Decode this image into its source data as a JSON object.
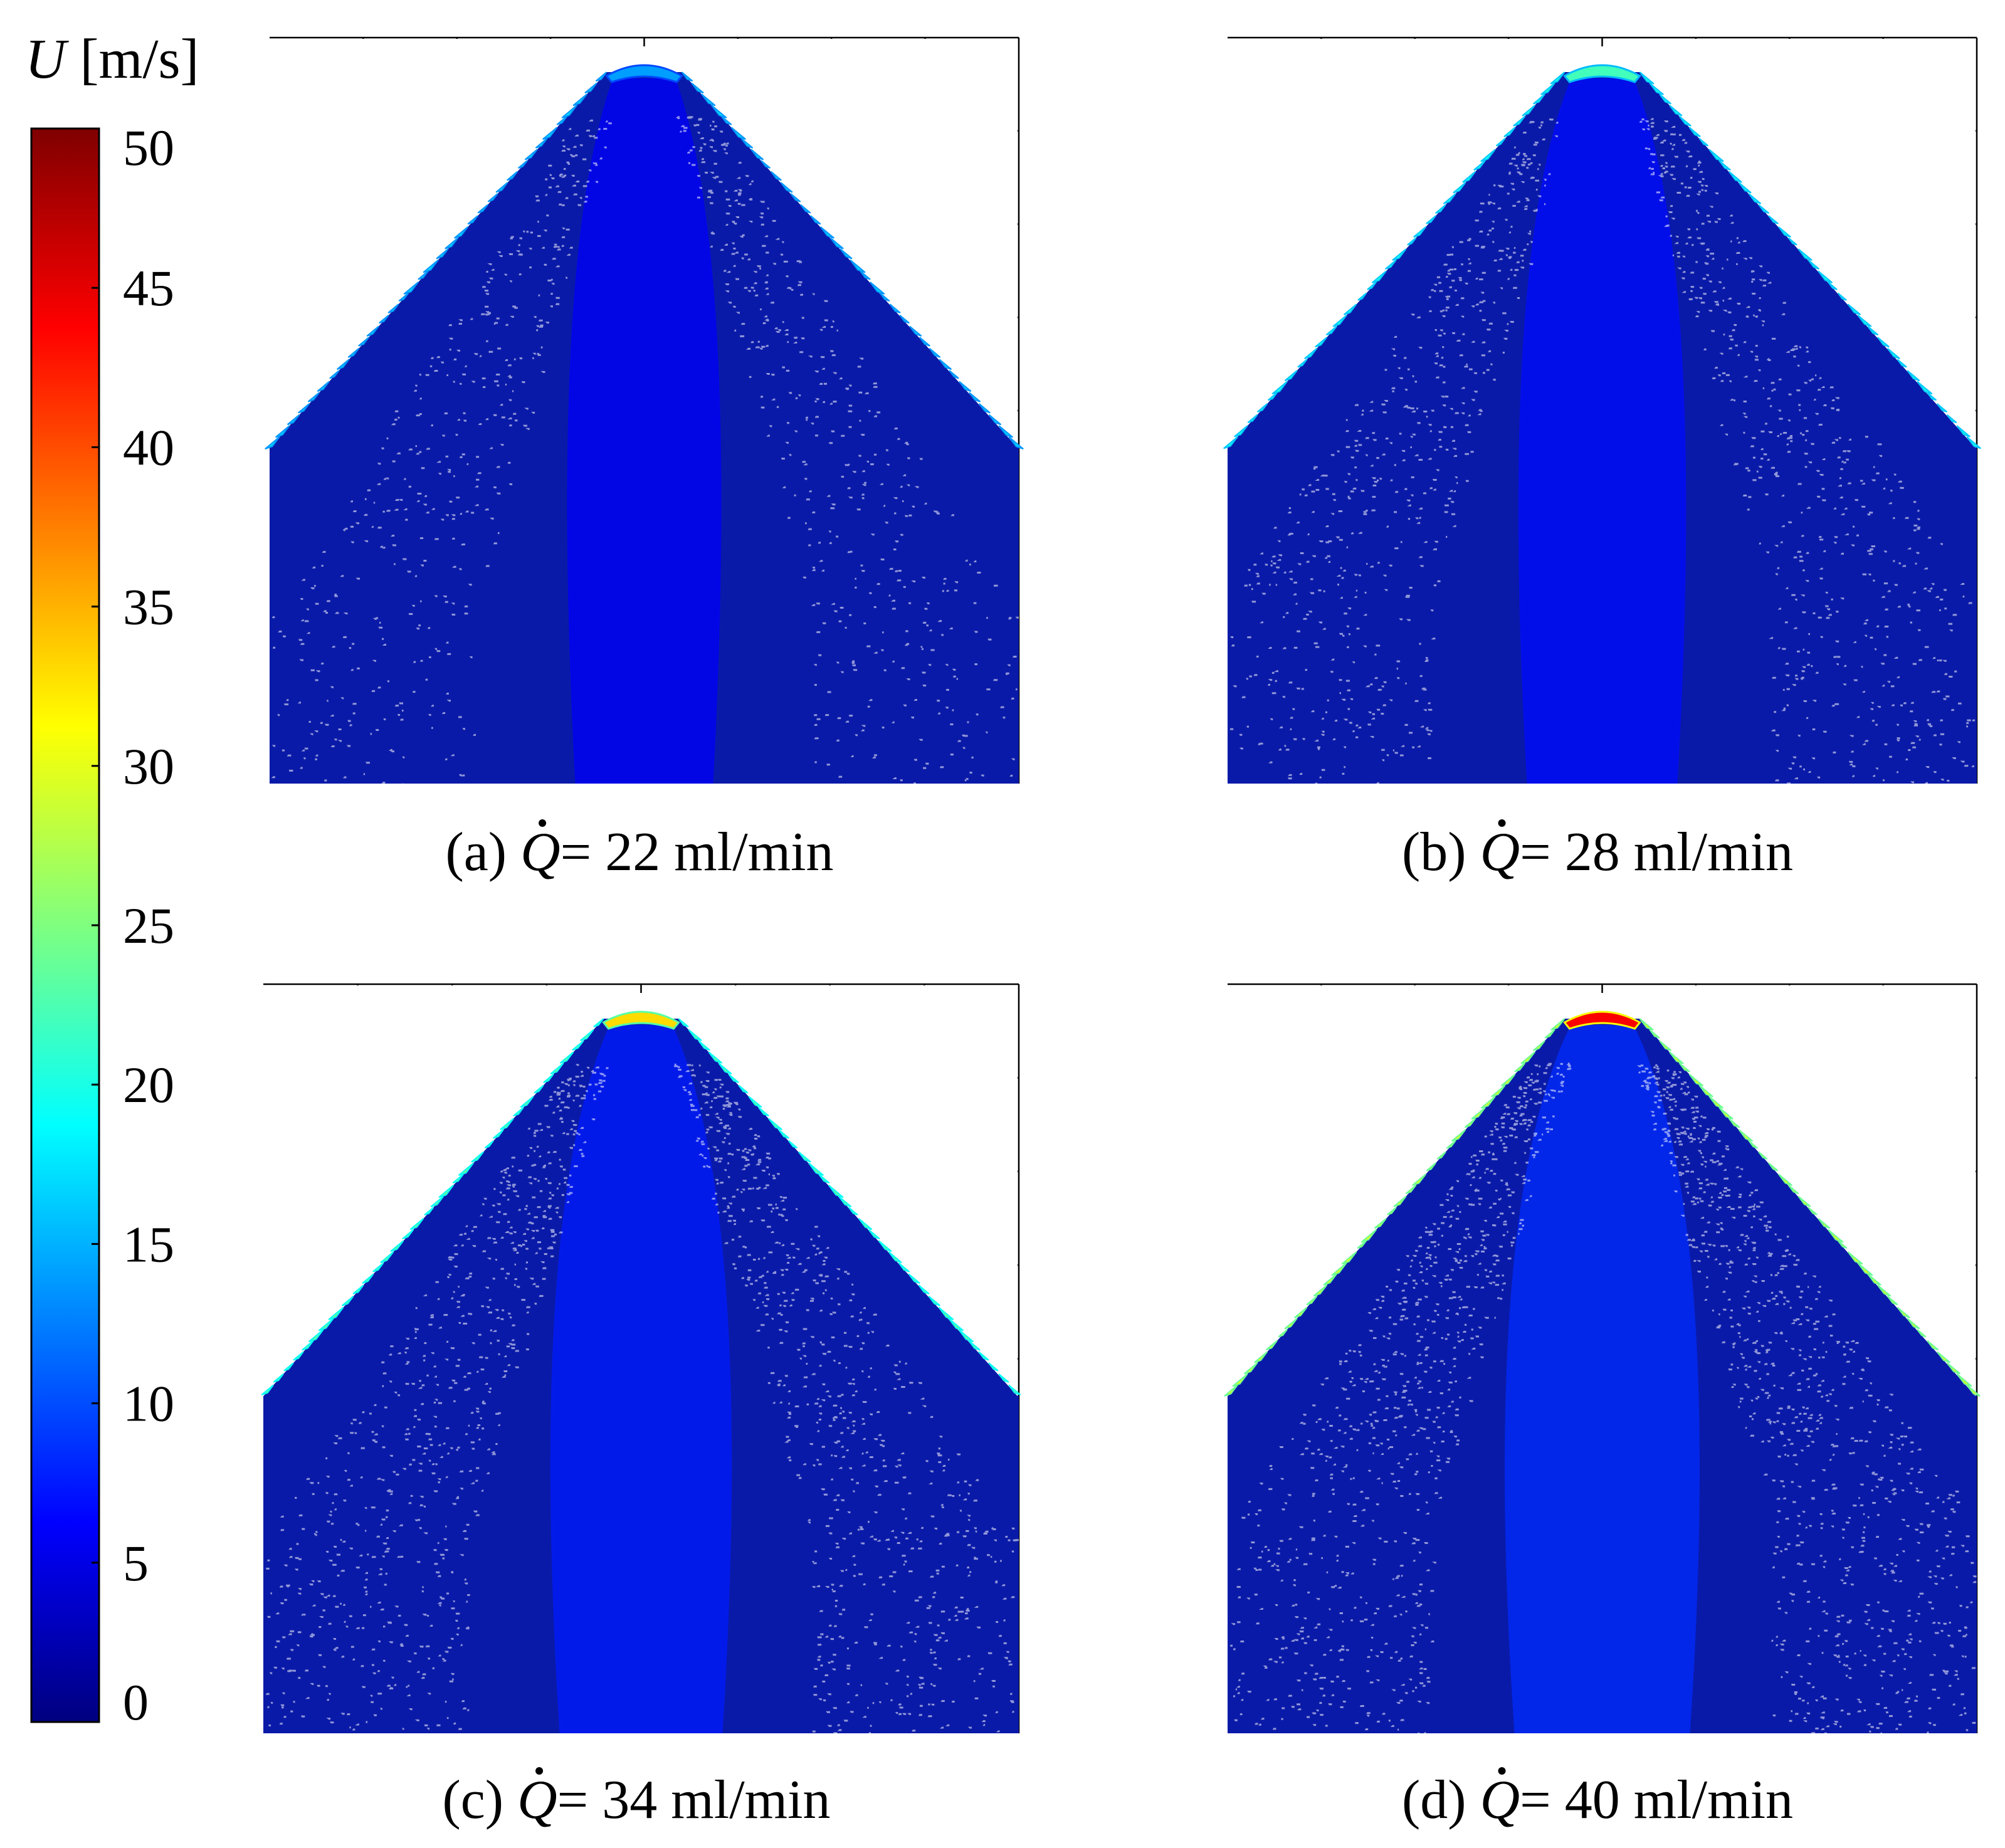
{
  "figure": {
    "colorbar": {
      "symbol": "U",
      "unit": " [m/s]",
      "min": 0,
      "max": 50,
      "ticks": [
        "0",
        "5",
        "10",
        "15",
        "20",
        "25",
        "30",
        "35",
        "40",
        "45",
        "50"
      ],
      "colormap": [
        "#00007f",
        "#0000ff",
        "#007fff",
        "#00ffff",
        "#7fff7f",
        "#ffff00",
        "#ff7f00",
        "#ff0000",
        "#7f0000"
      ]
    },
    "panels": [
      {
        "id": "a",
        "label_prefix": "(a) ",
        "label_suffix": "= 22 ml/min",
        "flow_rate": 22,
        "tip_speed": 14,
        "edge_speed": 17
      },
      {
        "id": "b",
        "label_prefix": "(b) ",
        "label_suffix": "= 28 ml/min",
        "flow_rate": 28,
        "tip_speed": 22,
        "edge_speed": 20
      },
      {
        "id": "c",
        "label_prefix": "(c) ",
        "label_suffix": "= 34 ml/min",
        "flow_rate": 34,
        "tip_speed": 33,
        "edge_speed": 24
      },
      {
        "id": "d",
        "label_prefix": "(d) ",
        "label_suffix": "= 40 ml/min",
        "flow_rate": 40,
        "tip_speed": 44,
        "edge_speed": 30
      }
    ]
  }
}
